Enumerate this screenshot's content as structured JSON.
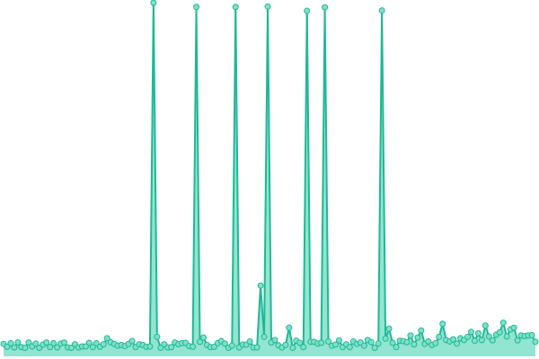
{
  "chart_data": {
    "type": "line",
    "title": "",
    "xlabel": "",
    "ylabel": "",
    "x_axis_shown": false,
    "y_axis_shown": false,
    "grid": false,
    "legend": "none",
    "xlim": [
      0,
      149
    ],
    "ylim": [
      0,
      100
    ],
    "area_fill": true,
    "colors": {
      "line": "#20b896",
      "marker_fill": "#7fe0c8",
      "marker_stroke": "#20b896",
      "area": "#7fe0c8"
    },
    "series": [
      {
        "values": [
          3.5,
          2.7,
          3.7,
          2.5,
          3.9,
          2.6,
          2.4,
          3.9,
          2.8,
          3.6,
          2.4,
          3.3,
          3.9,
          2.6,
          3.7,
          2.5,
          3.6,
          3.9,
          2.5,
          2.4,
          3.4,
          2.5,
          2.8,
          2.8,
          3.8,
          2.6,
          3.7,
          2.7,
          3.4,
          5.1,
          4.0,
          3.5,
          3.0,
          3.2,
          2.9,
          3.5,
          4.3,
          2.6,
          3.4,
          3.2,
          2.7,
          2.8,
          100,
          5.5,
          2.4,
          3.4,
          2.5,
          2.6,
          3.9,
          3.4,
          3.7,
          3.8,
          2.9,
          2.7,
          98.8,
          4.1,
          5.3,
          3.2,
          2.6,
          2.7,
          3.7,
          4.3,
          3.6,
          2.4,
          3.0,
          98.8,
          2.5,
          3.3,
          3.3,
          4.2,
          2.5,
          2.5,
          20.0,
          5.5,
          98.9,
          3.9,
          4.6,
          3.1,
          2.5,
          3.2,
          8.1,
          2.4,
          4.4,
          3.8,
          2.6,
          97.7,
          4.1,
          4.1,
          3.6,
          3.8,
          98.7,
          4.2,
          3.0,
          3.3,
          4.5,
          2.6,
          3.4,
          2.6,
          4.2,
          3.5,
          3.9,
          3.0,
          4.6,
          4.0,
          2.4,
          3.6,
          97.8,
          5.0,
          7.8,
          3.8,
          2.6,
          4.4,
          4.3,
          4.0,
          5.9,
          3.4,
          5.3,
          7.3,
          3.5,
          4.2,
          3.2,
          3.7,
          5.5,
          9.2,
          4.6,
          4.2,
          4.8,
          3.6,
          5.1,
          4.6,
          5.5,
          6.9,
          4.4,
          6.5,
          4.6,
          8.7,
          5.6,
          4.5,
          6.1,
          6.8,
          9.5,
          5.6,
          7.6,
          8.1,
          4.5,
          5.9,
          5.7,
          5.9,
          6.0,
          4.1
        ]
      }
    ]
  }
}
